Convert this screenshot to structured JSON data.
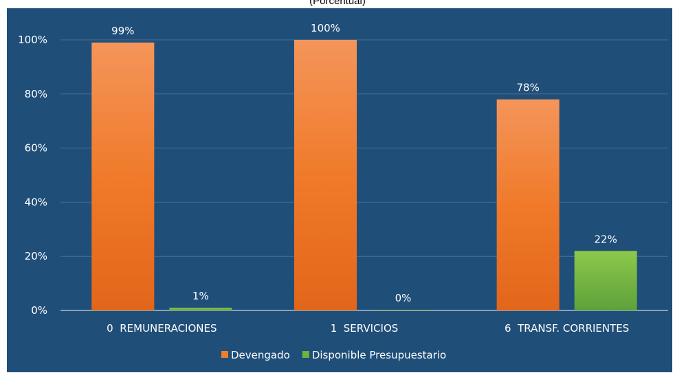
{
  "subtitle": "(Porcentual)",
  "chart_data": {
    "type": "bar",
    "categories": [
      "0  REMUNERACIONES",
      "1  SERVICIOS",
      "6  TRANSF. CORRIENTES"
    ],
    "series": [
      {
        "name": "Devengado",
        "values": [
          99,
          100,
          78
        ],
        "labels": [
          "99%",
          "100%",
          "78%"
        ],
        "color": "#f07d2c"
      },
      {
        "name": "Disponible Presupuestario",
        "values": [
          1,
          0,
          22
        ],
        "labels": [
          "1%",
          "0%",
          "22%"
        ],
        "color": "#6db33f"
      }
    ],
    "yticks": [
      "0%",
      "20%",
      "40%",
      "60%",
      "80%",
      "100%"
    ],
    "ylim": [
      0,
      100
    ],
    "grid": true,
    "legend_position": "bottom",
    "background": "#1f4e79"
  }
}
